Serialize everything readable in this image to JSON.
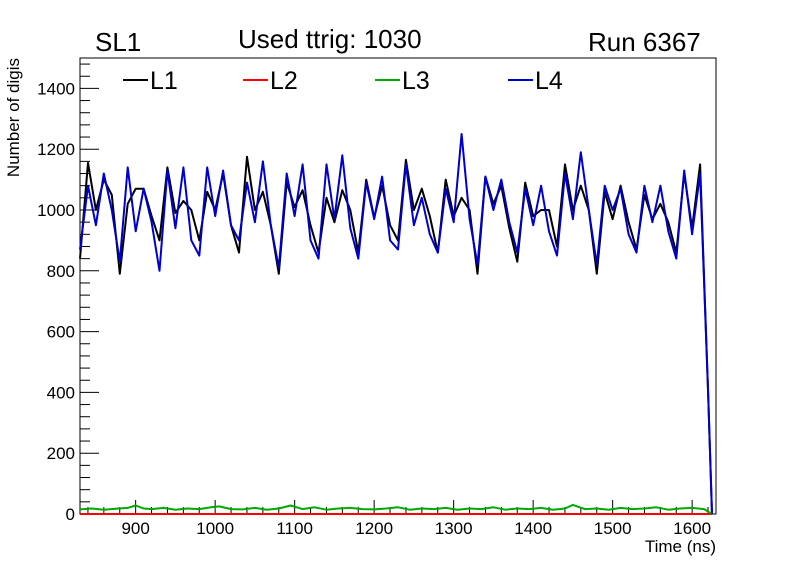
{
  "header": {
    "left": "SL1",
    "center": "Used ttrig: 1030",
    "right": "Run 6367"
  },
  "chart_data": {
    "type": "line",
    "title": "Used ttrig: 1030",
    "xlabel": "Time (ns)",
    "ylabel": "Number of digis",
    "xlim": [
      830,
      1630
    ],
    "ylim": [
      0,
      1500
    ],
    "xticks": [
      900,
      1000,
      1100,
      1200,
      1300,
      1400,
      1500,
      1600
    ],
    "yticks": [
      0,
      200,
      400,
      600,
      800,
      1000,
      1200,
      1400
    ],
    "legend_position": "top",
    "series": [
      {
        "name": "L1",
        "color": "#000000",
        "x": [
          830,
          840,
          850,
          860,
          870,
          880,
          890,
          900,
          910,
          920,
          930,
          940,
          950,
          960,
          970,
          980,
          990,
          1000,
          1010,
          1020,
          1030,
          1040,
          1050,
          1060,
          1070,
          1080,
          1090,
          1100,
          1110,
          1120,
          1130,
          1140,
          1150,
          1160,
          1170,
          1180,
          1190,
          1200,
          1210,
          1220,
          1230,
          1240,
          1250,
          1260,
          1270,
          1280,
          1290,
          1300,
          1310,
          1320,
          1330,
          1340,
          1350,
          1360,
          1370,
          1380,
          1390,
          1400,
          1410,
          1420,
          1430,
          1440,
          1450,
          1460,
          1470,
          1480,
          1490,
          1500,
          1510,
          1520,
          1530,
          1540,
          1550,
          1560,
          1570,
          1580,
          1590,
          1600,
          1610,
          1620,
          1625
        ],
        "values": [
          840,
          1155,
          1000,
          1100,
          1050,
          790,
          1020,
          1070,
          1070,
          980,
          900,
          1140,
          990,
          1030,
          1000,
          900,
          1060,
          1000,
          1120,
          950,
          860,
          1175,
          1000,
          1060,
          950,
          790,
          1090,
          1010,
          1065,
          950,
          860,
          1040,
          960,
          1065,
          1000,
          860,
          1100,
          975,
          1080,
          950,
          900,
          1165,
          1000,
          1070,
          980,
          860,
          1100,
          980,
          1040,
          1000,
          790,
          1110,
          1020,
          1080,
          940,
          830,
          1090,
          980,
          1000,
          1000,
          880,
          1150,
          1000,
          1080,
          1000,
          790,
          1060,
          970,
          1080,
          960,
          870,
          1050,
          970,
          1020,
          960,
          860,
          1120,
          940,
          1150,
          400,
          0
        ]
      },
      {
        "name": "L2",
        "color": "#ff0000",
        "x": [
          830,
          1625
        ],
        "values": [
          0,
          0
        ]
      },
      {
        "name": "L3",
        "color": "#00aa00",
        "x": [
          830,
          845,
          860,
          875,
          890,
          900,
          910,
          920,
          935,
          950,
          965,
          980,
          995,
          1005,
          1020,
          1035,
          1050,
          1065,
          1080,
          1095,
          1110,
          1125,
          1140,
          1155,
          1170,
          1185,
          1200,
          1215,
          1230,
          1245,
          1260,
          1275,
          1290,
          1305,
          1320,
          1335,
          1350,
          1365,
          1380,
          1395,
          1410,
          1425,
          1440,
          1450,
          1465,
          1480,
          1495,
          1510,
          1525,
          1540,
          1555,
          1570,
          1585,
          1600,
          1615,
          1625
        ],
        "values": [
          15,
          18,
          14,
          17,
          20,
          28,
          18,
          16,
          20,
          14,
          18,
          16,
          22,
          25,
          16,
          15,
          20,
          14,
          18,
          28,
          16,
          22,
          14,
          18,
          20,
          16,
          15,
          18,
          22,
          14,
          18,
          16,
          20,
          14,
          18,
          16,
          22,
          14,
          18,
          16,
          20,
          14,
          18,
          30,
          16,
          18,
          14,
          20,
          16,
          18,
          22,
          14,
          18,
          20,
          16,
          0
        ]
      },
      {
        "name": "L4",
        "color": "#0000cc",
        "x": [
          830,
          840,
          850,
          860,
          870,
          880,
          890,
          900,
          910,
          920,
          930,
          940,
          950,
          960,
          970,
          980,
          990,
          1000,
          1010,
          1020,
          1030,
          1040,
          1050,
          1060,
          1070,
          1080,
          1090,
          1100,
          1110,
          1120,
          1130,
          1140,
          1150,
          1160,
          1170,
          1180,
          1190,
          1200,
          1210,
          1220,
          1230,
          1240,
          1250,
          1260,
          1270,
          1280,
          1290,
          1300,
          1310,
          1320,
          1330,
          1340,
          1350,
          1360,
          1370,
          1380,
          1390,
          1400,
          1410,
          1420,
          1430,
          1440,
          1450,
          1460,
          1470,
          1480,
          1490,
          1500,
          1510,
          1520,
          1530,
          1540,
          1550,
          1560,
          1570,
          1580,
          1590,
          1600,
          1610,
          1620,
          1625
        ],
        "values": [
          870,
          1080,
          950,
          1120,
          1000,
          830,
          1140,
          930,
          1070,
          960,
          800,
          1130,
          940,
          1140,
          900,
          850,
          1140,
          980,
          1130,
          950,
          900,
          1090,
          960,
          1160,
          950,
          810,
          1120,
          980,
          1150,
          900,
          840,
          1150,
          970,
          1180,
          940,
          840,
          1090,
          970,
          1110,
          900,
          870,
          1150,
          950,
          1040,
          920,
          860,
          1070,
          960,
          1250,
          970,
          820,
          1110,
          1000,
          1100,
          960,
          860,
          1070,
          950,
          1080,
          930,
          850,
          1120,
          970,
          1190,
          1000,
          820,
          1080,
          1000,
          1070,
          920,
          860,
          1080,
          960,
          1080,
          930,
          840,
          1130,
          920,
          1120,
          400,
          0
        ]
      }
    ]
  }
}
